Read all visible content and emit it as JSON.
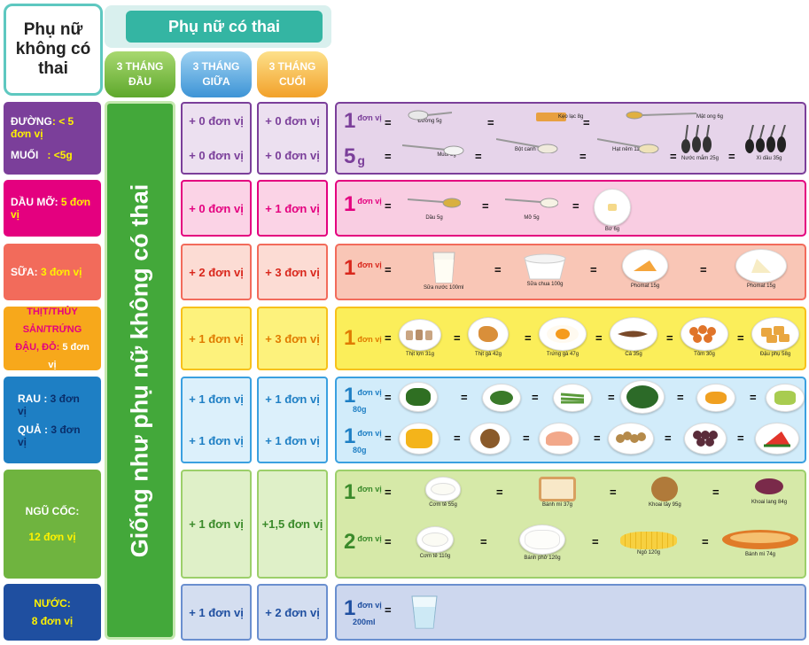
{
  "header": {
    "non_pregnant": "Phụ nữ không có thai",
    "pregnant": "Phụ nữ có thai",
    "trimesters": [
      {
        "line1": "3 THÁNG",
        "line2": "ĐẦU"
      },
      {
        "line1": "3 THÁNG",
        "line2": "GIỮA"
      },
      {
        "line1": "3 THÁNG",
        "line2": "CUỐI"
      }
    ]
  },
  "same_as_non_pregnant": "Giống như phụ nữ không có thai",
  "rows": {
    "sugar_salt": {
      "sugar_label": "ĐƯỜNG",
      "sugar_amount": ": < 5 đơn vị",
      "salt_label": "MUỐI",
      "salt_amount": ": <5g",
      "mid_sugar": "+ 0 đơn vị",
      "last_sugar": "+ 0 đơn vị",
      "mid_salt": "+ 0 đơn vị",
      "last_salt": "+ 0 đơn vị",
      "unit1_num": "1",
      "unit1_word": "đơn vị",
      "unit2_num": "5",
      "unit2_word": "g",
      "items1": [
        "Đường 5g",
        "Kẹo lạc 8g",
        "Mật ong 6g"
      ],
      "items2": [
        "Muối 5g",
        "Bột canh 8g",
        "Hạt nêm 11g",
        "Nước mắm 25g",
        "Xì dầu 35g"
      ]
    },
    "fat": {
      "label": "DẦU MỠ:",
      "amount": " 5 đơn vị",
      "mid": "+ 0 đơn vị",
      "last": "+ 1 đơn vị",
      "unit_num": "1",
      "unit_word": "đơn vị",
      "items": [
        "Dầu 5g",
        "Mỡ 5g",
        "Bơ 6g"
      ]
    },
    "milk": {
      "label": "SỮA:",
      "amount": " 3 đơn vị",
      "mid": "+ 2 đơn vị",
      "last": "+ 3 đơn vị",
      "unit_num": "1",
      "unit_word": "đơn vị",
      "items": [
        "Sữa nước 100ml",
        "Sữa chua 100g",
        "Phomat 15g",
        "Phomat 15g"
      ]
    },
    "protein": {
      "label1": "THỊT/THỦY SẢN/TRỨNG",
      "label2": "ĐẬU, ĐỖ:",
      "amount": " 5 đơn vị",
      "mid": "+ 1 đơn vị",
      "last": "+ 3 đơn vị",
      "unit_num": "1",
      "unit_word": "đơn vị",
      "items": [
        "Thịt lợn 31g",
        "Thịt gà 42g",
        "Trứng gà 47g",
        "Cá 35g",
        "Tôm 30g",
        "Đậu phụ 58g"
      ]
    },
    "veg_fruit": {
      "veg_label": "RAU :",
      "veg_amount": " 3 đơn vị",
      "fruit_label": "QUẢ :",
      "fruit_amount": " 3 đơn vị",
      "mid_veg": "+ 1 đơn vị",
      "last_veg": "+ 1 đơn vị",
      "mid_fruit": "+ 1 đơn vị",
      "last_fruit": "+ 1 đơn vị",
      "unit_num": "1",
      "unit_word": "đơn vị",
      "unit_sub": "80g"
    },
    "grain": {
      "label": "NGŨ CỐC:",
      "amount": "12 đơn vị",
      "mid": "+ 1 đơn vị",
      "last": "+1,5 đơn vị",
      "unit1_num": "1",
      "unit2_num": "2",
      "unit_word": "đơn vị",
      "items1": [
        "Cơm tẻ 55g",
        "Bánh mì 37g",
        "Khoai tây 95g",
        "Khoai lang 84g"
      ],
      "items2": [
        "Cơm tẻ 110g",
        "Bánh phở 120g",
        "Ngô 120g",
        "Bánh mì 74g"
      ]
    },
    "water": {
      "label": "NƯỚC:",
      "amount": "8 đơn vị",
      "mid": "+ 1 đơn vị",
      "last": "+ 2 đơn vị",
      "unit_num": "1",
      "unit_word": "đơn vị",
      "unit_sub": "200ml"
    }
  },
  "equals_sign": "=",
  "colors": {
    "purple": "#7b3f9a",
    "pink": "#e4007f",
    "salmon": "#f26b5b",
    "yellow": "#f7a81b",
    "blue": "#1e7fc4",
    "green": "#6fb43f",
    "navy": "#1f4fa0",
    "teal": "#34b5a3"
  }
}
